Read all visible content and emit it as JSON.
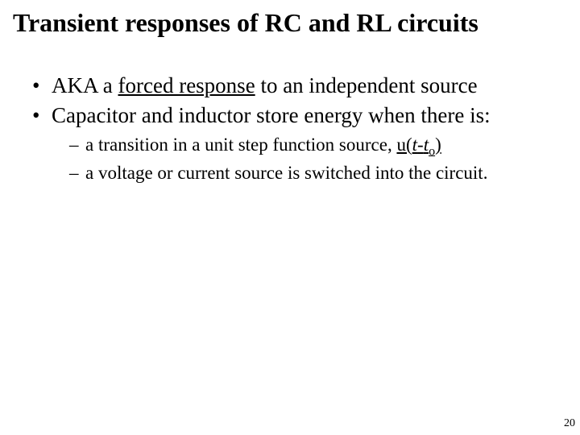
{
  "title": "Transient responses of RC and RL circuits",
  "bullets": {
    "b1_pre": "AKA a ",
    "b1_underline": "forced response",
    "b1_post": " to an independent source",
    "b2": "Capacitor and  inductor  store energy when there is:",
    "s1_pre": "a transition in a unit step function source, ",
    "s1_func_u": "u(",
    "s1_func_t": "t",
    "s1_func_dash": "-",
    "s1_func_t2": "t",
    "s1_func_sub": "o",
    "s1_func_close": ")",
    "s2": "a voltage or current source is switched into the circuit."
  },
  "page_number": "20",
  "colors": {
    "background": "#ffffff",
    "text": "#000000"
  },
  "fonts": {
    "family": "Times New Roman",
    "title_size_pt": 32,
    "body_size_pt": 27,
    "sub_size_pt": 23
  }
}
